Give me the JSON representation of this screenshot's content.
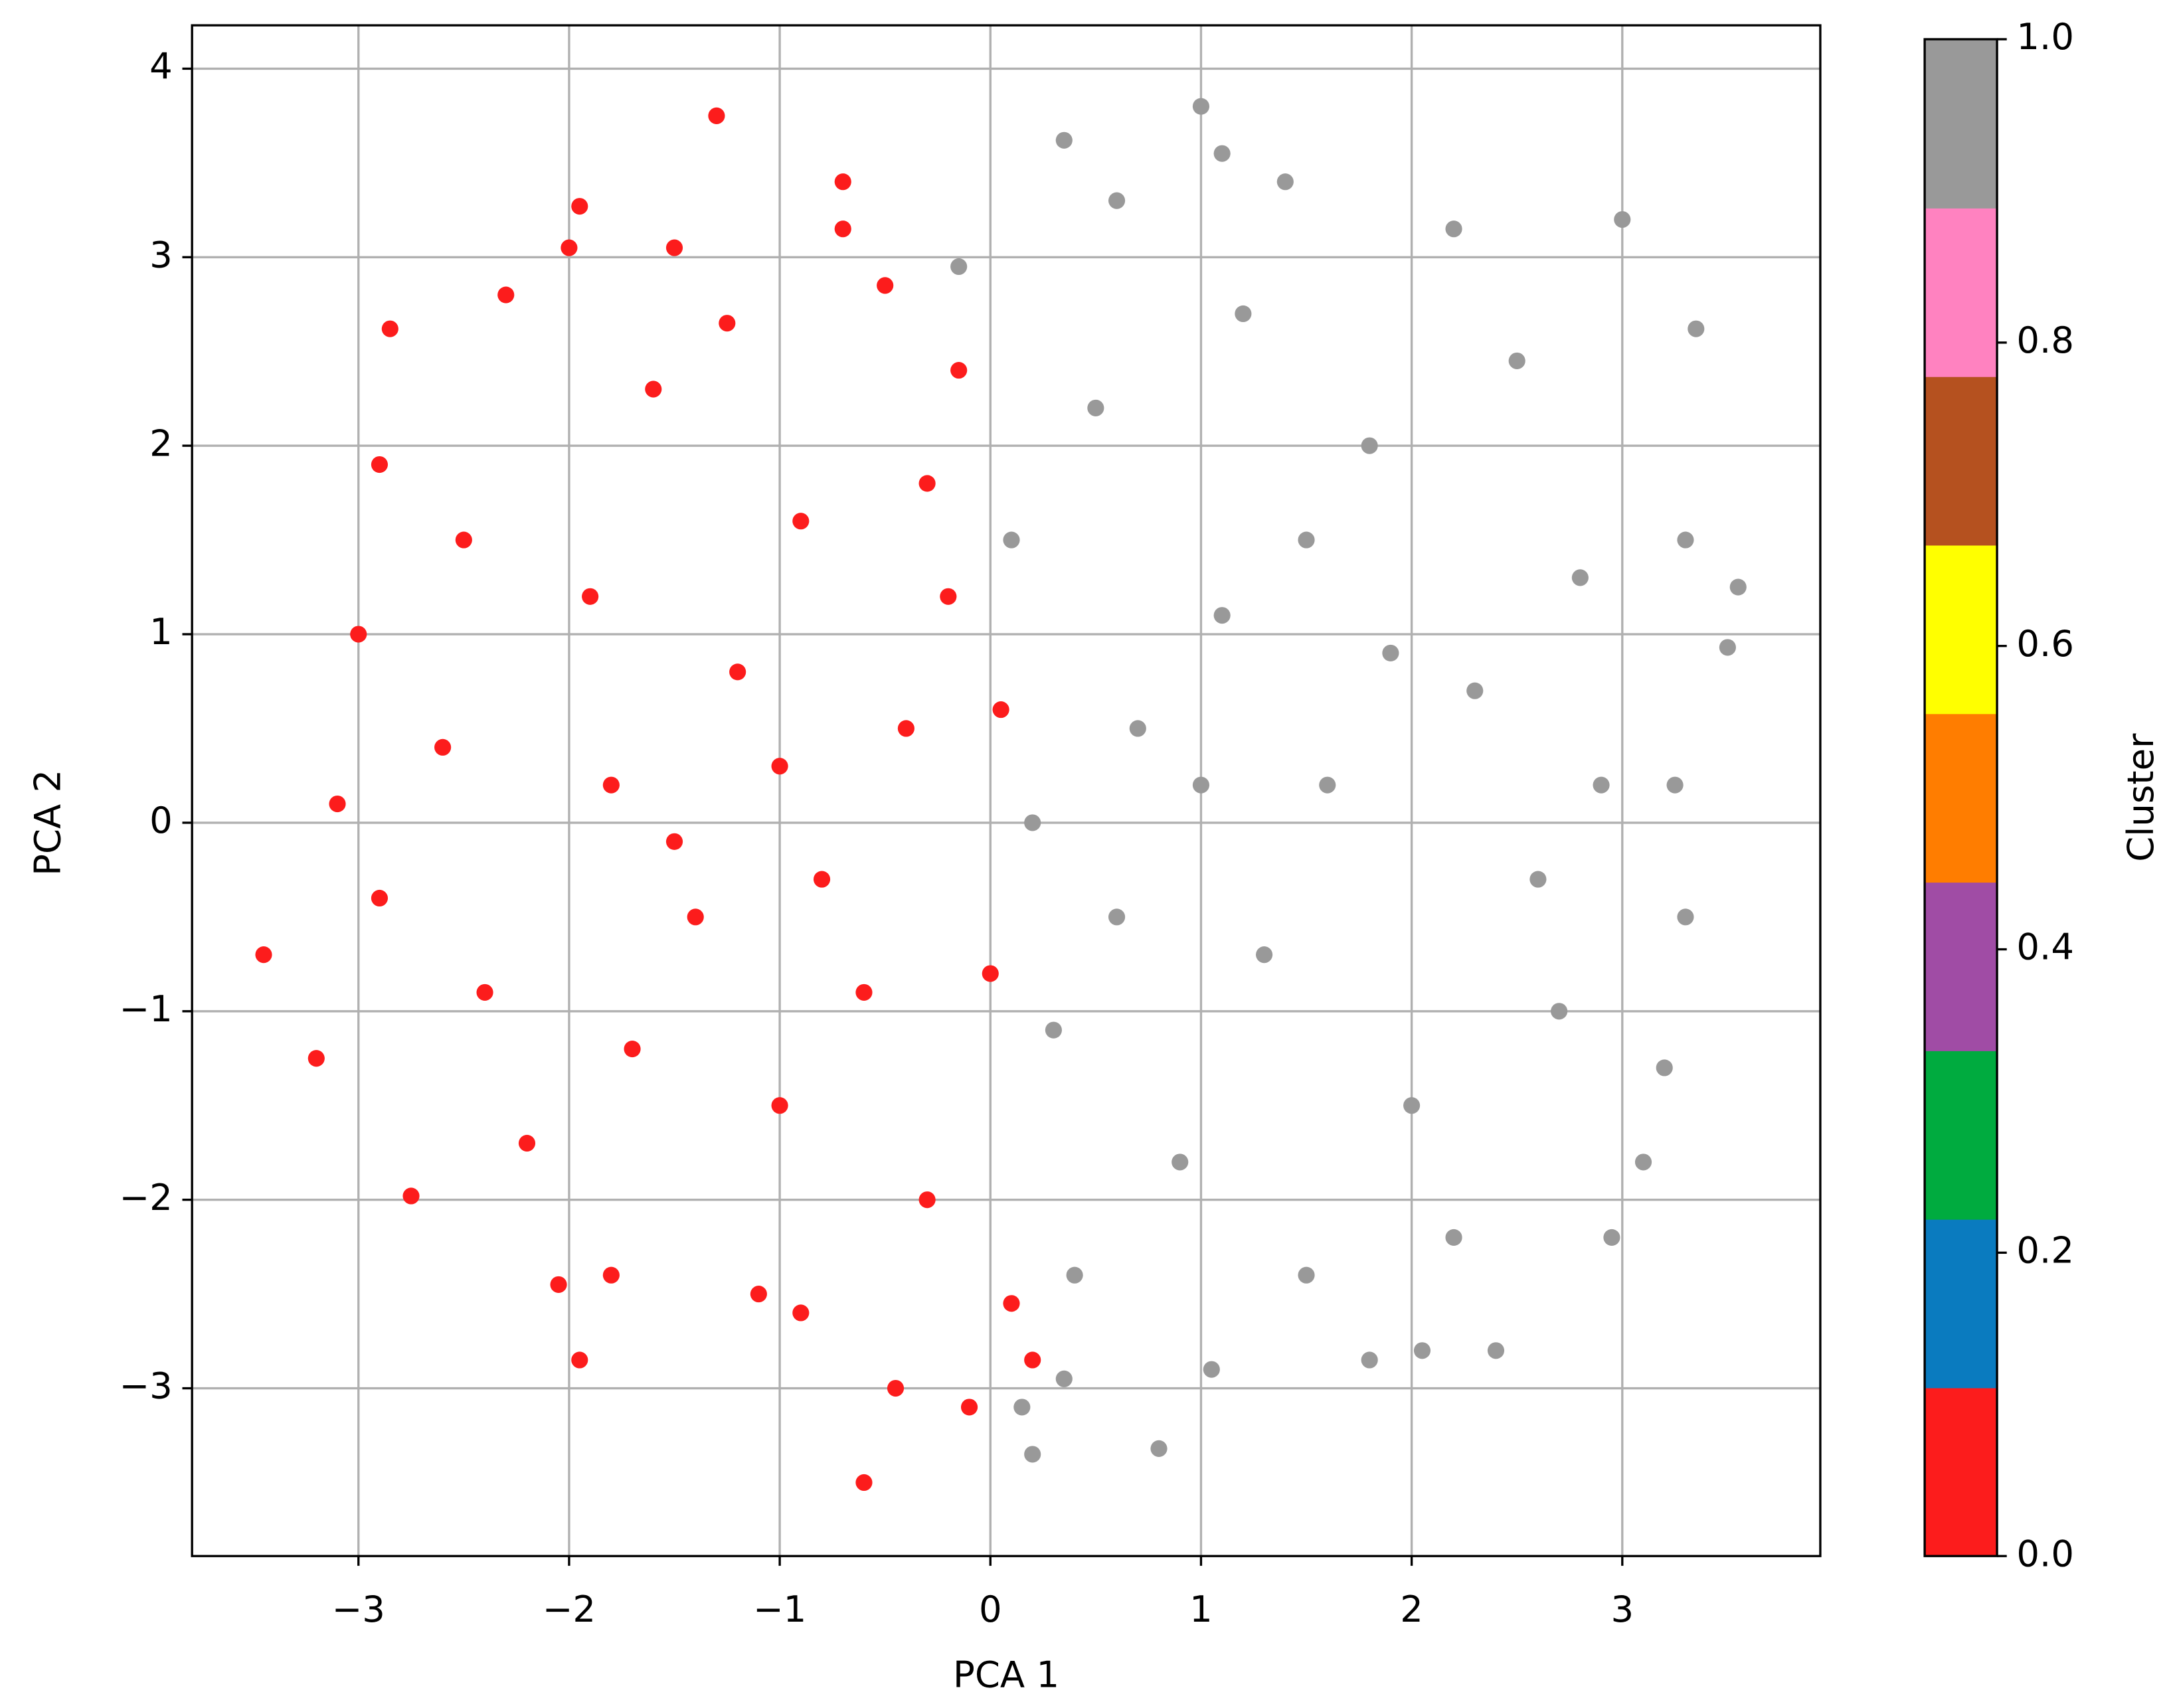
{
  "chart_data": {
    "type": "scatter",
    "x_label": "PCA 1",
    "y_label": "PCA 2",
    "xlim": [
      -3.79,
      3.94
    ],
    "ylim": [
      -3.89,
      4.23
    ],
    "xticks": [
      {
        "value": -3,
        "label": "−3"
      },
      {
        "value": -2,
        "label": "−2"
      },
      {
        "value": -1,
        "label": "−1"
      },
      0,
      1,
      2,
      3
    ],
    "yticks": [
      {
        "value": -3,
        "label": "−3"
      },
      {
        "value": -2,
        "label": "−2"
      },
      {
        "value": -1,
        "label": "−1"
      },
      0,
      1,
      2,
      3,
      4
    ],
    "grid": true,
    "series": [
      {
        "color": "#fc1c1c",
        "x": [
          -3.45,
          -3.2,
          -3.1,
          -2.9,
          -2.85,
          -2.75,
          -2.5,
          -2.3,
          -2.2,
          -2.05,
          -2.0,
          -1.95,
          -1.95,
          -1.8,
          -1.7,
          -1.6,
          -1.5,
          -1.4,
          -1.3,
          -1.25,
          -1.2,
          -1.1,
          -1.0,
          -0.9,
          -0.8,
          -0.7,
          -0.7,
          -0.6,
          -0.5,
          -0.45,
          -0.4,
          -0.3,
          -0.2,
          -0.1,
          0.0,
          0.1,
          0.2,
          -2.6,
          -2.4,
          -1.9,
          -1.5,
          -1.0,
          -0.6,
          -0.3,
          -2.9,
          -3.0,
          -1.8,
          -0.9,
          -0.15,
          0.05
        ],
        "y": [
          -0.7,
          -1.25,
          0.1,
          1.9,
          2.62,
          -1.98,
          1.5,
          2.8,
          -1.7,
          -2.45,
          3.05,
          3.27,
          -2.85,
          0.2,
          -1.2,
          2.3,
          3.05,
          -0.5,
          3.75,
          2.65,
          0.8,
          -2.5,
          -1.5,
          1.6,
          -0.3,
          3.4,
          3.15,
          -3.5,
          2.85,
          -3.0,
          0.5,
          -2.0,
          1.2,
          -3.1,
          -0.8,
          -2.55,
          -2.85,
          0.4,
          -0.9,
          1.2,
          -0.1,
          0.3,
          -0.9,
          1.8,
          -0.4,
          1.0,
          -2.4,
          -2.6,
          2.4,
          0.6
        ]
      },
      {
        "color": "#999999",
        "x": [
          -0.15,
          0.15,
          0.2,
          0.35,
          0.35,
          0.6,
          0.8,
          1.0,
          1.05,
          1.1,
          1.4,
          1.5,
          1.8,
          2.05,
          2.2,
          2.4,
          2.5,
          2.95,
          3.0,
          3.35,
          3.55,
          3.5,
          3.3,
          3.2,
          3.1,
          2.8,
          2.6,
          2.3,
          2.0,
          1.8,
          1.6,
          1.3,
          1.1,
          0.9,
          0.7,
          0.5,
          0.3,
          0.1,
          0.2,
          0.6,
          1.0,
          1.5,
          2.2,
          2.7,
          2.9,
          3.25,
          1.2,
          0.4,
          1.9,
          3.3
        ],
        "y": [
          2.95,
          -3.1,
          -3.35,
          3.62,
          -2.95,
          3.3,
          -3.32,
          3.8,
          -2.9,
          3.55,
          3.4,
          -2.4,
          -2.85,
          -2.8,
          3.15,
          -2.8,
          2.45,
          -2.2,
          3.2,
          2.62,
          1.25,
          0.93,
          -0.5,
          -1.3,
          -1.8,
          1.3,
          -0.3,
          0.7,
          -1.5,
          2.0,
          0.2,
          -0.7,
          1.1,
          -1.8,
          0.5,
          2.2,
          -1.1,
          1.5,
          0.0,
          -0.5,
          0.2,
          1.5,
          -2.2,
          -1.0,
          0.2,
          0.2,
          2.7,
          -2.4,
          0.9,
          1.5
        ]
      }
    ],
    "colorbar": {
      "label": "Cluster",
      "lim": [
        0,
        1
      ],
      "ticks": [
        {
          "value": 0,
          "label": "0.0"
        },
        {
          "value": 0.2,
          "label": "0.2"
        },
        {
          "value": 0.4,
          "label": "0.4"
        },
        {
          "value": 0.6,
          "label": "0.6"
        },
        {
          "value": 0.8,
          "label": "0.8"
        },
        {
          "value": 1,
          "label": "1.0"
        }
      ],
      "colors": [
        "#fc1c1c",
        "#0a7bbf",
        "#00ab3f",
        "#a04ca5",
        "#ff7d00",
        "#ffff00",
        "#b5511f",
        "#ff82c0",
        "#999999"
      ]
    }
  }
}
